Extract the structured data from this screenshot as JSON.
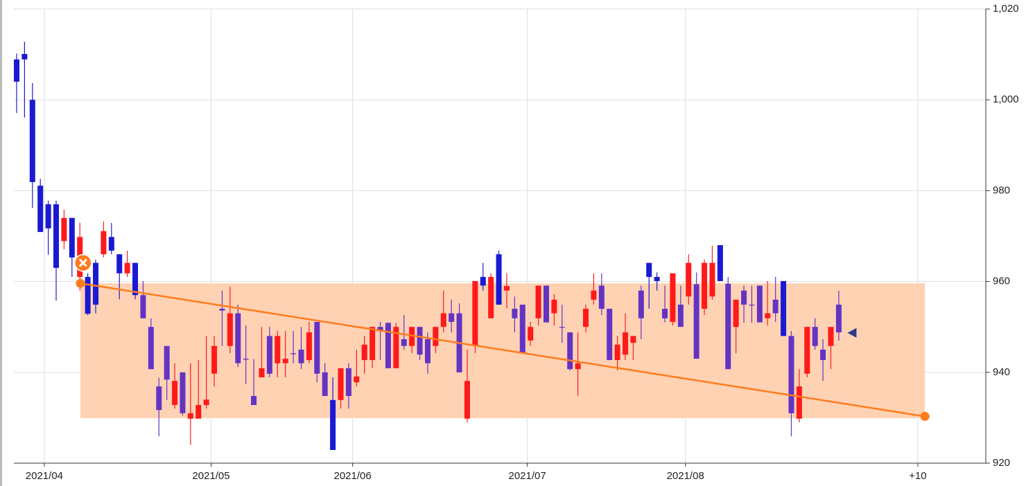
{
  "chart_data": {
    "type": "candlestick",
    "series": [
      {
        "open": [
          1008.9,
          1010.1,
          1000,
          981.1,
          977,
          977,
          968.9,
          974,
          961,
          961,
          964.1,
          966,
          969.8,
          966,
          961.8,
          964.1,
          957,
          950,
          936.9,
          945.8,
          932.8,
          940,
          929.8,
          929.8,
          932.8,
          939.7,
          954,
          945.8,
          953,
          943,
          934.8,
          938.9,
          948,
          942,
          942,
          944.2,
          945,
          942.7,
          951.1,
          940,
          933.9,
          933.9,
          940.9,
          937.8,
          942.7,
          942.7,
          950,
          950.9,
          940.9,
          947.3,
          945.8,
          950,
          947.3,
          945.8,
          950,
          953,
          953,
          929.8,
          945.8,
          961,
          951.9,
          966,
          958,
          954,
          954.9,
          947,
          951.9,
          959.1,
          953,
          950,
          948.8,
          940.7,
          950,
          956,
          959.1,
          954,
          942.7,
          943.9,
          946.5,
          958,
          964.1,
          961,
          954,
          951.1,
          954.9,
          956.7,
          959.4,
          954,
          956.7,
          968,
          959.5,
          950,
          958,
          954.9,
          959.1,
          951.9,
          956,
          960.1,
          948,
          929.8,
          939.7,
          950,
          945,
          945.8,
          954.9
        ],
        "high": [
          1010.2,
          1012.8,
          1003.7,
          982.6,
          977.8,
          977.8,
          975.8,
          974,
          972.9,
          961.8,
          964.8,
          973.2,
          972.9,
          966,
          966.8,
          964.1,
          960.1,
          951.9,
          938.8,
          945.8,
          942,
          940,
          942,
          942.7,
          948,
          948,
          958,
          958.9,
          954.9,
          950.3,
          942.9,
          950,
          950,
          949.1,
          949.1,
          949.1,
          950,
          951.1,
          951.1,
          942,
          938.9,
          940.9,
          942,
          945,
          948,
          950,
          951.1,
          950.9,
          950.9,
          952.6,
          950,
          950,
          948.8,
          950,
          958,
          956,
          955.2,
          945,
          960.1,
          964.1,
          961.8,
          966.8,
          961.8,
          956.7,
          954.9,
          951.1,
          959.1,
          959.1,
          957.2,
          954.9,
          948.8,
          948.8,
          954.9,
          961.8,
          961.8,
          954,
          948,
          953,
          948,
          959.1,
          964.1,
          962,
          959.1,
          961.8,
          959.1,
          966,
          962,
          964.8,
          967.9,
          968,
          961,
          956,
          959.1,
          959.1,
          959.1,
          960.1,
          961,
          960.1,
          949.1,
          940.7,
          950,
          951.9,
          947.3,
          950,
          958
        ],
        "low": [
          997.1,
          996.1,
          976.2,
          970.9,
          965.9,
          955.8,
          967.1,
          961,
          958,
          952.6,
          953,
          965.3,
          966,
          956.1,
          961,
          956.1,
          951.9,
          940.7,
          925.9,
          933.9,
          932,
          930.5,
          924,
          929.8,
          932,
          936.9,
          945.8,
          944.2,
          941.2,
          937.4,
          932.8,
          938.9,
          938.9,
          938.9,
          938.9,
          942,
          940.7,
          942,
          937.8,
          934.8,
          922.9,
          932,
          932,
          936.9,
          939.7,
          940.9,
          942.7,
          940.9,
          940.9,
          945,
          944.2,
          942.7,
          939.7,
          944.2,
          948.8,
          948.8,
          940,
          929,
          944.2,
          958,
          951.9,
          954.9,
          954.1,
          948.8,
          944.2,
          945.8,
          950.3,
          951,
          950.3,
          946.5,
          940.4,
          934.8,
          948.8,
          954.9,
          952.6,
          942.7,
          940.4,
          942.7,
          942.7,
          947.3,
          954,
          958,
          951,
          950.3,
          950,
          954.9,
          943,
          952.6,
          956,
          960.1,
          940.7,
          944.2,
          950.9,
          950.9,
          951,
          950.3,
          951.1,
          948,
          925.9,
          929,
          938.9,
          945,
          938.1,
          940.7,
          947
        ],
        "close": [
          1004,
          1008.9,
          981.9,
          970.9,
          971.7,
          963,
          974,
          965.3,
          969.8,
          952.9,
          954.9,
          971.1,
          966.8,
          961.8,
          964.1,
          957,
          951.9,
          940.7,
          931.7,
          938.4,
          938.1,
          931,
          931,
          932.8,
          934,
          945.8,
          953.6,
          953,
          942,
          942.8,
          932.8,
          940.9,
          939.7,
          948,
          943,
          944,
          942,
          948.8,
          939.7,
          934.8,
          922.9,
          940.9,
          934.8,
          939.1,
          946.1,
          950,
          949.1,
          940.9,
          950,
          945.8,
          950,
          943.9,
          942,
          950,
          953,
          951.1,
          940,
          938.1,
          960.1,
          959.1,
          961,
          954.9,
          959,
          951.9,
          944.2,
          950,
          959.1,
          951,
          956,
          949.9,
          940.7,
          942,
          954,
          958,
          954,
          942.7,
          946.1,
          948.8,
          948,
          951.9,
          961,
          960.1,
          951.9,
          961.8,
          950,
          964.1,
          943,
          964.1,
          964.1,
          960.1,
          940.7,
          956,
          954.9,
          954.8,
          951,
          953,
          953,
          948,
          931,
          936.9,
          950,
          945.8,
          942.7,
          950,
          948.8
        ],
        "up_color": "#ff1a1a",
        "down_color": "#1a1ad2",
        "in_box_down_color": "#6433c4"
      }
    ],
    "xlim": [
      -0.35,
      122.6
    ],
    "xticks": [
      {
        "value": 3.5,
        "label": "2021/04"
      },
      {
        "value": 24.6,
        "label": "2021/05"
      },
      {
        "value": 42.5,
        "label": "2021/06"
      },
      {
        "value": 64.6,
        "label": "2021/07"
      },
      {
        "value": 84.6,
        "label": "2021/08"
      },
      {
        "value": 114,
        "label": "+10"
      }
    ],
    "ylim": [
      920,
      1020
    ],
    "yticks": [
      920,
      940,
      960,
      980,
      {
        "value": 1000,
        "label": "1,000"
      },
      {
        "value": 1020,
        "label": "1,020"
      }
    ],
    "grid": true,
    "box": {
      "x": [
        8.07,
        114.9
      ],
      "y": [
        929.9,
        959.6
      ],
      "color": "#ffd2b4"
    },
    "trendline": {
      "x": [
        8.07,
        114.9
      ],
      "y": [
        959.6,
        930.3
      ],
      "color": "#ff7b1c"
    },
    "cross_marker": {
      "x": 8.4,
      "y": 964.1,
      "color": "#ff7b1c"
    },
    "triangle_marker": {
      "x": 105.1,
      "y": 948.7,
      "color": "#2a3a8c"
    }
  }
}
